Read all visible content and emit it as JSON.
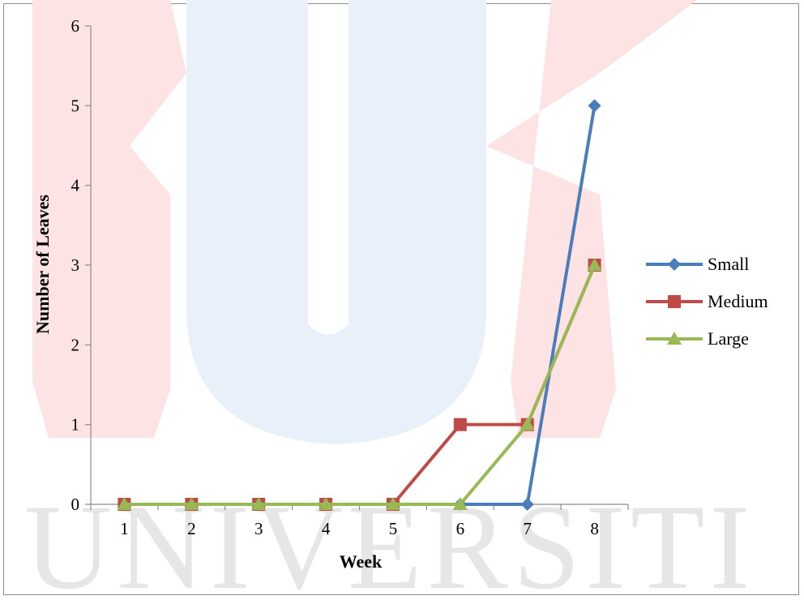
{
  "watermark_text": "UNIVERSITI",
  "chart_data": {
    "type": "line",
    "title": "",
    "xlabel": "Week",
    "ylabel": "Number of Leaves",
    "categories": [
      "1",
      "2",
      "3",
      "4",
      "5",
      "6",
      "7",
      "8"
    ],
    "ylim": [
      0,
      6
    ],
    "yticks": [
      "0",
      "1",
      "2",
      "3",
      "4",
      "5",
      "6"
    ],
    "grid": false,
    "legend_position": "right",
    "series": [
      {
        "name": "Small",
        "values": [
          0,
          0,
          0,
          0,
          0,
          0,
          0,
          5
        ],
        "color": "#4a7ebb",
        "marker": "diamond"
      },
      {
        "name": "Medium",
        "values": [
          0,
          0,
          0,
          0,
          0,
          1,
          1,
          3
        ],
        "color": "#be4b48",
        "marker": "square"
      },
      {
        "name": "Large",
        "values": [
          0,
          0,
          0,
          0,
          0,
          0,
          1,
          3
        ],
        "color": "#98b954",
        "marker": "triangle"
      }
    ]
  }
}
